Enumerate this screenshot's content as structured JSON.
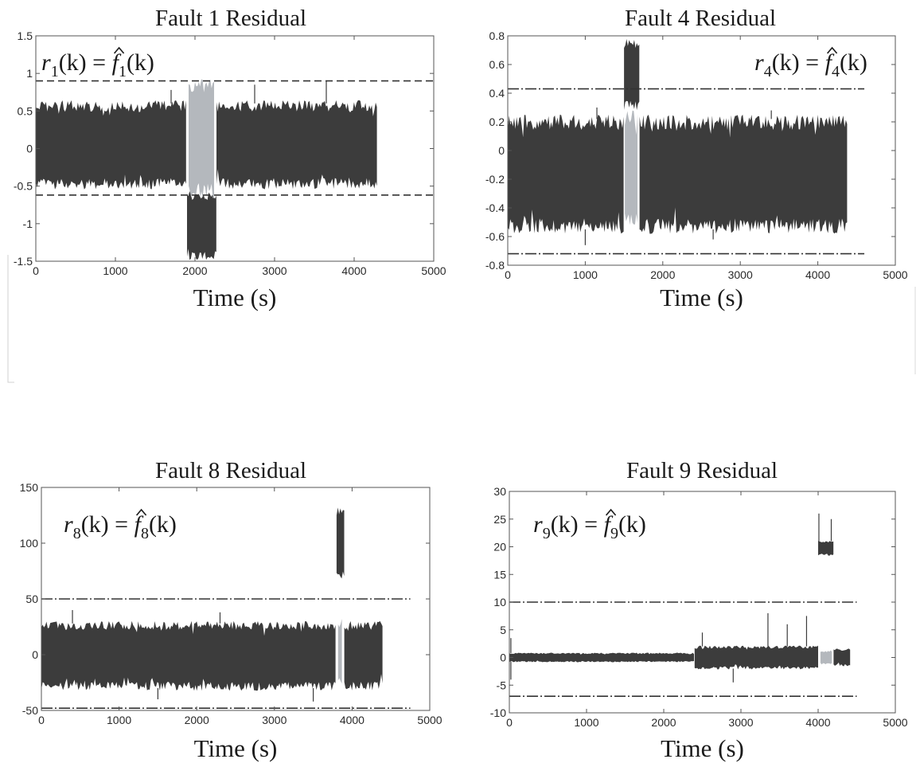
{
  "figure": {
    "colors": {
      "residual_normal": "#3c3c3c",
      "residual_fault_window": "#b4b8bd",
      "threshold": "#333333",
      "axes": "#555555"
    }
  },
  "chart_data": [
    {
      "type": "line",
      "title": "Fault 1 Residual",
      "equation": {
        "residual_index": "1",
        "estimate_index": "1"
      },
      "xlabel": "Time (s)",
      "ylabel": "",
      "xlim": [
        0,
        5000
      ],
      "ylim": [
        -1.5,
        1.5
      ],
      "xticks": [
        0,
        1000,
        2000,
        3000,
        4000,
        5000
      ],
      "yticks": [
        -1.5,
        -1,
        -0.5,
        0,
        0.5,
        1,
        1.5
      ],
      "xtick_labels": [
        "0",
        "1000",
        "2000",
        "3000",
        "4000",
        "5000"
      ],
      "ytick_labels": [
        "-1.5",
        "-1",
        "-0.5",
        "0",
        "0.5",
        "1",
        "1.5"
      ],
      "grid": false,
      "series": [
        {
          "name": "",
          "style": "noise band",
          "segments": [
            {
              "x": [
                0,
                1900
              ],
              "band": [
                -0.5,
                0.6
              ]
            },
            {
              "x": [
                1900,
                2270
              ],
              "band": [
                -1.45,
                -0.6
              ]
            },
            {
              "x": [
                2270,
                4300
              ],
              "band": [
                -0.5,
                0.6
              ]
            }
          ],
          "spikes": [
            {
              "x": 1700,
              "y": 0.78
            },
            {
              "x": 2750,
              "y": 0.85
            },
            {
              "x": 3650,
              "y": 0.9
            }
          ]
        },
        {
          "name": "",
          "style": "fault window (light)",
          "segments": [
            {
              "x": [
                1920,
                2250
              ],
              "band": [
                -0.6,
                0.88
              ]
            }
          ]
        }
      ],
      "thresholds": [
        {
          "y": 0.9,
          "x": [
            0,
            5000
          ],
          "dash": "dashed"
        },
        {
          "y": -0.62,
          "x": [
            0,
            5000
          ],
          "dash": "dashed"
        }
      ]
    },
    {
      "type": "line",
      "title": "Fault 4 Residual",
      "equation": {
        "residual_index": "4",
        "estimate_index": "4"
      },
      "xlabel": "Time (s)",
      "ylabel": "",
      "xlim": [
        0,
        5000
      ],
      "ylim": [
        -0.8,
        0.8
      ],
      "xticks": [
        0,
        1000,
        2000,
        3000,
        4000,
        5000
      ],
      "yticks": [
        -0.8,
        -0.6,
        -0.4,
        -0.2,
        0,
        0.2,
        0.4,
        0.6,
        0.8
      ],
      "xtick_labels": [
        "0",
        "1000",
        "2000",
        "3000",
        "4000",
        "5000"
      ],
      "ytick_labels": [
        "-0.8",
        "-0.6",
        "-0.4",
        "-0.2",
        "0",
        "0.2",
        "0.4",
        "0.6",
        "0.8"
      ],
      "grid": false,
      "series": [
        {
          "name": "",
          "style": "noise band",
          "segments": [
            {
              "x": [
                0,
                1500
              ],
              "band": [
                -0.55,
                0.22
              ]
            },
            {
              "x": [
                1500,
                1700
              ],
              "band": [
                0.3,
                0.76
              ]
            },
            {
              "x": [
                1700,
                4380
              ],
              "band": [
                -0.55,
                0.22
              ]
            }
          ],
          "spikes": [
            {
              "x": 1000,
              "y": -0.66
            },
            {
              "x": 1150,
              "y": 0.3
            },
            {
              "x": 2650,
              "y": -0.62
            },
            {
              "x": 3400,
              "y": 0.28
            }
          ]
        },
        {
          "name": "",
          "style": "fault window (light)",
          "segments": [
            {
              "x": [
                1510,
                1690
              ],
              "band": [
                -0.5,
                0.25
              ]
            }
          ]
        }
      ],
      "thresholds": [
        {
          "y": 0.43,
          "x": [
            0,
            4600
          ],
          "dash": "dashdot"
        },
        {
          "y": -0.72,
          "x": [
            0,
            4600
          ],
          "dash": "dashdot"
        }
      ]
    },
    {
      "type": "line",
      "title": "Fault 8 Residual",
      "equation": {
        "residual_index": "8",
        "estimate_index": "8"
      },
      "xlabel": "Time (s)",
      "ylabel": "",
      "xlim": [
        0,
        5000
      ],
      "ylim": [
        -50,
        150
      ],
      "xticks": [
        0,
        1000,
        2000,
        3000,
        4000,
        5000
      ],
      "yticks": [
        -50,
        0,
        50,
        100,
        150
      ],
      "xtick_labels": [
        "0",
        "1000",
        "2000",
        "3000",
        "4000",
        "5000"
      ],
      "ytick_labels": [
        "-50",
        "0",
        "50",
        "100",
        "150"
      ],
      "grid": false,
      "series": [
        {
          "name": "",
          "style": "noise band",
          "segments": [
            {
              "x": [
                0,
                3800
              ],
              "band": [
                -30,
                28
              ]
            },
            {
              "x": [
                3800,
                3900
              ],
              "band": [
                70,
                130
              ]
            },
            {
              "x": [
                3900,
                4400
              ],
              "band": [
                -30,
                28
              ]
            }
          ],
          "spikes": [
            {
              "x": 400,
              "y": 40
            },
            {
              "x": 1500,
              "y": -40
            },
            {
              "x": 2300,
              "y": 38
            },
            {
              "x": 3500,
              "y": -42
            }
          ]
        },
        {
          "name": "",
          "style": "fault window (light)",
          "segments": [
            {
              "x": [
                3820,
                3880
              ],
              "band": [
                -25,
                30
              ]
            }
          ]
        }
      ],
      "thresholds": [
        {
          "y": 50,
          "x": [
            0,
            4750
          ],
          "dash": "dashdot"
        },
        {
          "y": -48,
          "x": [
            0,
            4750
          ],
          "dash": "dashdot"
        }
      ]
    },
    {
      "type": "line",
      "title": "Fault 9 Residual",
      "equation": {
        "residual_index": "9",
        "estimate_index": "9"
      },
      "xlabel": "Time (s)",
      "ylabel": "",
      "xlim": [
        0,
        5000
      ],
      "ylim": [
        -10,
        30
      ],
      "xticks": [
        0,
        1000,
        2000,
        3000,
        4000,
        5000
      ],
      "yticks": [
        -10,
        -5,
        0,
        5,
        10,
        15,
        20,
        25,
        30
      ],
      "xtick_labels": [
        "0",
        "1000",
        "2000",
        "3000",
        "4000",
        "5000"
      ],
      "ytick_labels": [
        "-10",
        "-5",
        "0",
        "5",
        "10",
        "15",
        "20",
        "25",
        "30"
      ],
      "grid": false,
      "series": [
        {
          "name": "",
          "style": "noise band",
          "segments": [
            {
              "x": [
                0,
                2400
              ],
              "band": [
                -0.8,
                0.8
              ]
            },
            {
              "x": [
                2400,
                4000
              ],
              "band": [
                -2,
                2
              ]
            },
            {
              "x": [
                4000,
                4200
              ],
              "band": [
                18.5,
                21
              ]
            },
            {
              "x": [
                4200,
                4420
              ],
              "band": [
                -1.5,
                1.5
              ]
            }
          ],
          "spikes": [
            {
              "x": 20,
              "y": 3.5
            },
            {
              "x": 20,
              "y": -4
            },
            {
              "x": 2500,
              "y": 4.5
            },
            {
              "x": 2900,
              "y": -4.5
            },
            {
              "x": 3350,
              "y": 8
            },
            {
              "x": 3600,
              "y": 6
            },
            {
              "x": 3850,
              "y": 7.5
            },
            {
              "x": 4010,
              "y": 26
            },
            {
              "x": 4170,
              "y": 25
            }
          ]
        },
        {
          "name": "",
          "style": "fault window (light)",
          "segments": [
            {
              "x": [
                4030,
                4180
              ],
              "band": [
                -1.2,
                1.2
              ]
            }
          ]
        }
      ],
      "thresholds": [
        {
          "y": 10,
          "x": [
            0,
            4500
          ],
          "dash": "dashdot"
        },
        {
          "y": -7,
          "x": [
            0,
            4500
          ],
          "dash": "dashdot"
        }
      ]
    }
  ]
}
